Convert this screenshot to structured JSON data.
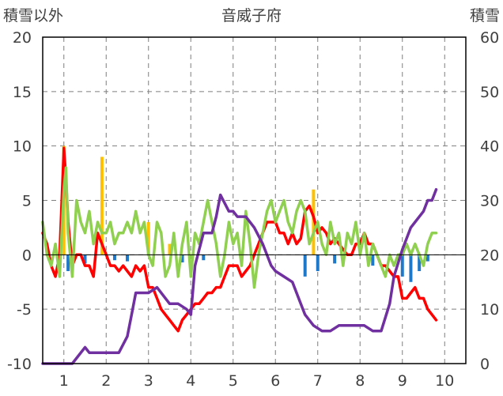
{
  "chart_data": {
    "type": "line",
    "title": "音威子府",
    "left_axis_label": "積雪以外",
    "right_axis_label": "積雪",
    "left_ylim": [
      -10,
      20
    ],
    "left_ticks": [
      "20",
      "15",
      "10",
      "5",
      "0",
      "-5",
      "-10"
    ],
    "right_ylim": [
      0,
      60
    ],
    "right_ticks": [
      "60",
      "50",
      "40",
      "30",
      "20",
      "10",
      "0"
    ],
    "xlim": [
      0.5,
      10.5
    ],
    "x_ticks": [
      "1",
      "2",
      "3",
      "4",
      "5",
      "6",
      "7",
      "8",
      "9",
      "10"
    ],
    "grid": true,
    "colors": {
      "max_temp": "#90d050",
      "min_temp": "#ff0000",
      "snow_depth": "#7030a0",
      "precipitation": "#ffc000",
      "snowfall": "#1f78c8",
      "axis": "#404040",
      "grid": "#7f7f7f"
    },
    "series": [
      {
        "name": "",
        "axis": "left",
        "color": "#ff0000",
        "x": [
          0.5,
          0.6,
          0.7,
          0.8,
          0.9,
          1.0,
          1.05,
          1.1,
          1.2,
          1.3,
          1.4,
          1.5,
          1.6,
          1.7,
          1.8,
          1.9,
          2.0,
          2.1,
          2.2,
          2.3,
          2.4,
          2.5,
          2.6,
          2.7,
          2.8,
          2.9,
          3.0,
          3.1,
          3.2,
          3.3,
          3.4,
          3.5,
          3.6,
          3.7,
          3.8,
          3.9,
          4.0,
          4.1,
          4.2,
          4.3,
          4.4,
          4.5,
          4.6,
          4.7,
          4.8,
          4.9,
          5.0,
          5.1,
          5.2,
          5.3,
          5.4,
          5.5,
          5.6,
          5.7,
          5.8,
          5.9,
          6.0,
          6.1,
          6.2,
          6.3,
          6.4,
          6.5,
          6.6,
          6.7,
          6.8,
          6.9,
          7.0,
          7.1,
          7.2,
          7.3,
          7.4,
          7.5,
          7.6,
          7.7,
          7.8,
          7.9,
          8.0,
          8.1,
          8.2,
          8.3,
          8.4,
          8.5,
          8.6,
          8.7,
          8.8,
          8.9,
          9.0,
          9.1,
          9.2,
          9.3,
          9.4,
          9.5,
          9.6,
          9.7,
          9.8
        ],
        "values": [
          2,
          1,
          -1,
          -2,
          0,
          9.8,
          7,
          3,
          -1,
          0,
          0,
          -1,
          -1,
          -2,
          2,
          1,
          0,
          -1,
          -1,
          -1.5,
          -1,
          -1.5,
          -2,
          -1,
          -1.5,
          -1,
          -3,
          -3,
          -4,
          -5,
          -5.5,
          -6,
          -6.5,
          -7,
          -6,
          -5.5,
          -5,
          -4.5,
          -4.5,
          -4,
          -3.5,
          -3.5,
          -3,
          -3,
          -2,
          -1,
          -1,
          -1,
          -2,
          -1.5,
          -1,
          0,
          1,
          2,
          3,
          3,
          3,
          2,
          2,
          1,
          2,
          1,
          1.5,
          4,
          4.5,
          3.5,
          2,
          2.5,
          2,
          1,
          1.5,
          1,
          0.5,
          0,
          0,
          1,
          1,
          2,
          1,
          1,
          0,
          -1,
          -1,
          -1.5,
          -2,
          -2,
          -4,
          -4,
          -3.5,
          -3,
          -4,
          -4,
          -5,
          -5.5,
          -6
        ]
      },
      {
        "name": "",
        "axis": "left",
        "color": "#90d050",
        "x": [
          0.5,
          0.6,
          0.7,
          0.8,
          0.9,
          1.0,
          1.05,
          1.1,
          1.2,
          1.3,
          1.4,
          1.5,
          1.6,
          1.7,
          1.8,
          1.9,
          2.0,
          2.1,
          2.2,
          2.3,
          2.4,
          2.5,
          2.6,
          2.7,
          2.8,
          2.9,
          3.0,
          3.1,
          3.2,
          3.3,
          3.4,
          3.5,
          3.6,
          3.7,
          3.8,
          3.9,
          4.0,
          4.1,
          4.2,
          4.3,
          4.4,
          4.5,
          4.6,
          4.7,
          4.8,
          4.9,
          5.0,
          5.1,
          5.2,
          5.3,
          5.4,
          5.5,
          5.6,
          5.7,
          5.8,
          5.9,
          6.0,
          6.1,
          6.2,
          6.3,
          6.4,
          6.5,
          6.6,
          6.7,
          6.8,
          6.9,
          7.0,
          7.1,
          7.2,
          7.3,
          7.4,
          7.5,
          7.6,
          7.7,
          7.8,
          7.9,
          8.0,
          8.1,
          8.2,
          8.3,
          8.4,
          8.5,
          8.6,
          8.7,
          8.8,
          8.9,
          9.0,
          9.1,
          9.2,
          9.3,
          9.4,
          9.5,
          9.6,
          9.7,
          9.8
        ],
        "values": [
          3,
          0,
          -1,
          1,
          -2,
          6,
          8,
          2,
          -2,
          5,
          3,
          2,
          4,
          1,
          3,
          2,
          2,
          3,
          1,
          2,
          2,
          3,
          2,
          4,
          2,
          3,
          0,
          -1,
          3,
          2,
          -2,
          -1,
          2,
          -2,
          1,
          3,
          -2,
          2,
          1,
          3,
          5,
          3,
          1,
          -2,
          0,
          3,
          1,
          2,
          -1,
          4,
          1,
          -3,
          0,
          2,
          4,
          5,
          3,
          4,
          5,
          3,
          2,
          4,
          5,
          4,
          1,
          2,
          3,
          1,
          0,
          3,
          1,
          2,
          -1,
          2,
          1,
          3,
          0,
          2,
          -1,
          1,
          0,
          -1,
          -2,
          0,
          -1,
          0,
          0,
          1,
          0,
          1,
          0,
          -1,
          1,
          2,
          2
        ]
      },
      {
        "name": "",
        "axis": "right",
        "color": "#7030a0",
        "x": [
          0.5,
          1.2,
          1.5,
          1.6,
          2.3,
          2.5,
          2.6,
          2.7,
          3.0,
          3.2,
          3.5,
          3.7,
          3.9,
          4.0,
          4.1,
          4.3,
          4.5,
          4.6,
          4.7,
          4.9,
          5.0,
          5.1,
          5.3,
          5.5,
          5.7,
          5.9,
          6.0,
          6.2,
          6.4,
          6.6,
          6.7,
          6.9,
          7.1,
          7.3,
          7.5,
          7.7,
          7.9,
          8.1,
          8.3,
          8.5,
          8.7,
          8.8,
          9.0,
          9.1,
          9.2,
          9.3,
          9.4,
          9.5,
          9.6,
          9.7,
          9.8
        ],
        "values": [
          0,
          0,
          3,
          2,
          2,
          5,
          9,
          13,
          13,
          14,
          11,
          11,
          10,
          9,
          18,
          24,
          24,
          27,
          31,
          28,
          28,
          27,
          27,
          25,
          22,
          18,
          17,
          16,
          15,
          11,
          9,
          7,
          6,
          6,
          7,
          7,
          7,
          7,
          6,
          6,
          11,
          16,
          21,
          23,
          25,
          26,
          27,
          28,
          30,
          30,
          32
        ]
      },
      {
        "name": "",
        "axis": "left",
        "type": "bar",
        "color": "#ffc000",
        "x": [
          1.0,
          1.9,
          3.0,
          3.5,
          6.9
        ],
        "values": [
          10,
          9,
          3,
          1,
          6
        ]
      },
      {
        "name": "",
        "axis": "left",
        "type": "bar",
        "color": "#1f78c8",
        "x": [
          1.1,
          1.5,
          2.2,
          2.5,
          3.8,
          4.3,
          6.7,
          7.0,
          7.4,
          8.3,
          9.0,
          9.2,
          9.4,
          9.6
        ],
        "values": [
          -1.5,
          -0.8,
          -0.5,
          -0.6,
          -0.7,
          -0.5,
          -2,
          -1.5,
          -0.8,
          -1,
          -2,
          -2.5,
          -1.5,
          -0.6
        ]
      }
    ]
  }
}
